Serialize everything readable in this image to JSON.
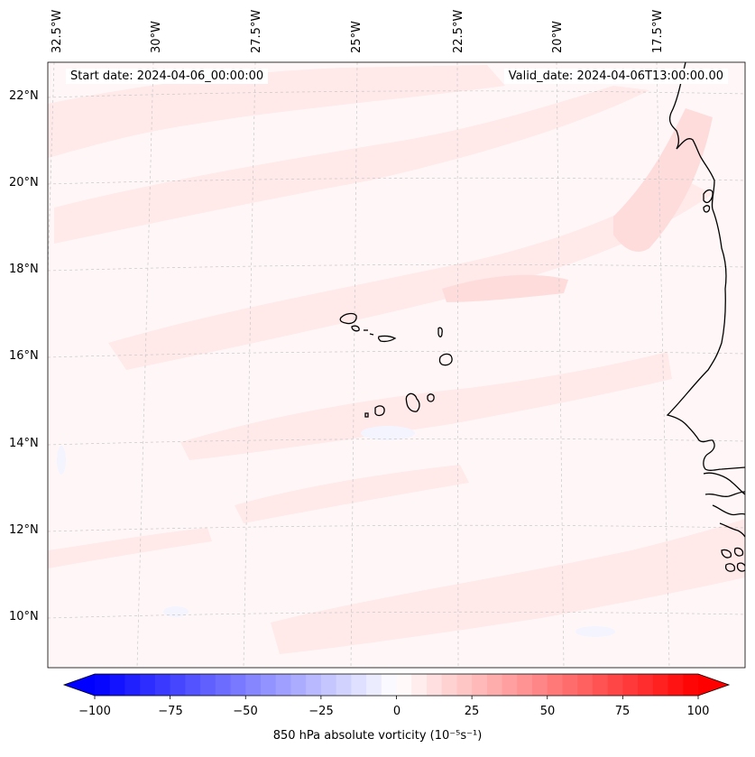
{
  "header": {
    "start_date": "Start date: 2024-04-06_00:00:00",
    "valid_date": "Valid_date: 2024-04-06T13:00:00.00"
  },
  "map": {
    "lon_labels": [
      "32.5°W",
      "30°W",
      "27.5°W",
      "25°W",
      "22.5°W",
      "20°W",
      "17.5°W"
    ],
    "lat_labels": [
      "22°N",
      "20°N",
      "18°N",
      "16°N",
      "14°N",
      "12°N",
      "10°N"
    ],
    "field_colors": {
      "background": "#fff7f7",
      "weak_positive": "#ffe9e9",
      "moderate_positive": "#ffdcdc",
      "weak_negative": "#f4f4ff",
      "coastline": "#000000",
      "gridline": "#c8c8c8"
    }
  },
  "colorbar": {
    "min": -100,
    "max": 100,
    "step": 5,
    "low_color": "#0000ff",
    "mid_color": "#ffffff",
    "high_color": "#ff0000",
    "tick_labels": [
      "−100",
      "−75",
      "−50",
      "−25",
      "0",
      "25",
      "50",
      "75",
      "100"
    ],
    "label": "850 hPa absolute vorticity (10⁻⁵s⁻¹)"
  }
}
